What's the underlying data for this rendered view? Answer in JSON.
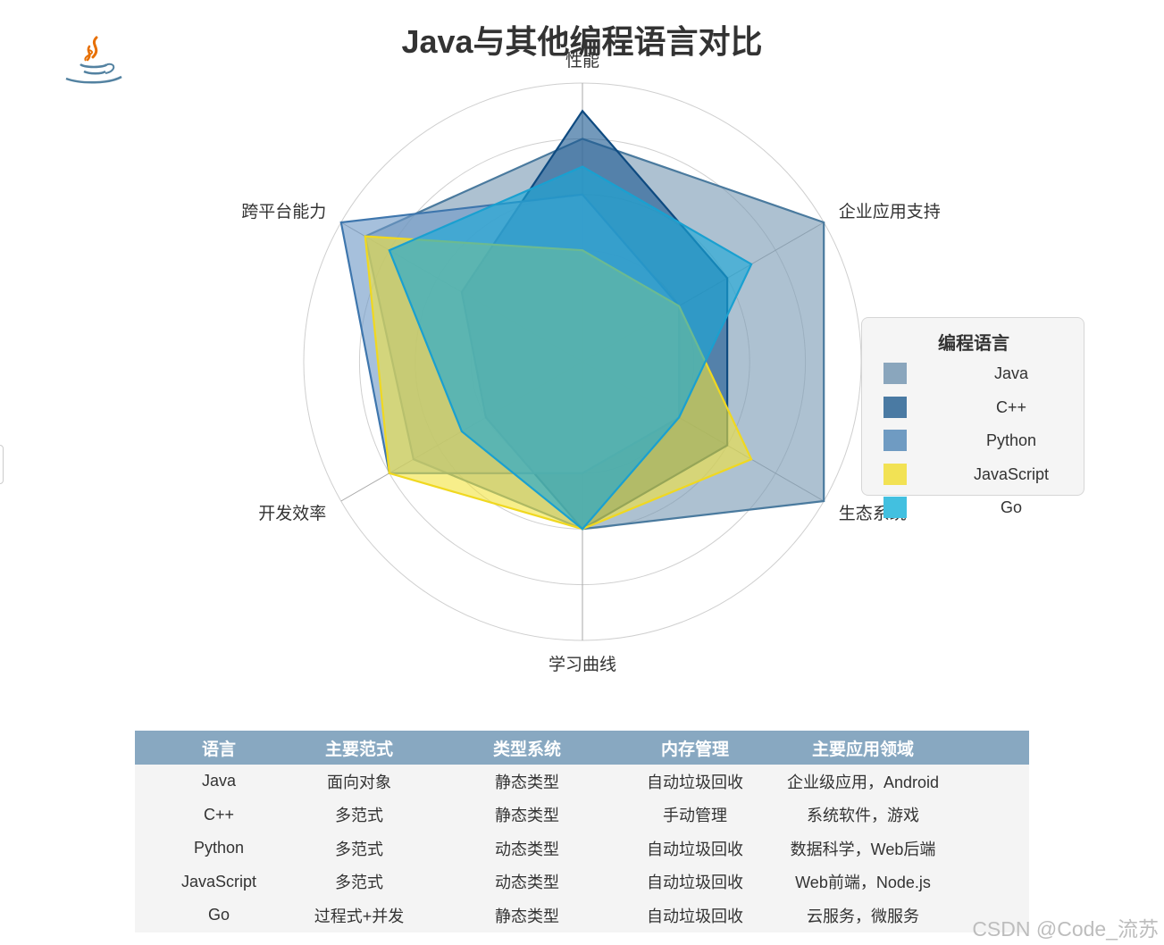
{
  "chart_data": {
    "type": "radar",
    "title": "Java与其他编程语言对比",
    "axes": [
      "性能",
      "企业应用支持",
      "生态系统",
      "学习曲线",
      "开发效率",
      "跨平台能力"
    ],
    "max": 10,
    "levels": 5,
    "legend": {
      "title": "编程语言",
      "position": "right",
      "items": [
        {
          "name": "Java",
          "color": "#8aa6bd"
        },
        {
          "name": "C++",
          "color": "#4a7aa3"
        },
        {
          "name": "Python",
          "color": "#6f9bc2"
        },
        {
          "name": "JavaScript",
          "color": "#f2e254"
        },
        {
          "name": "Go",
          "color": "#42c0e0"
        }
      ]
    },
    "series": [
      {
        "name": "Java",
        "values": [
          8,
          10,
          10,
          6,
          7,
          9
        ],
        "fill": "#7a9bb5",
        "stroke": "#4a7a9e"
      },
      {
        "name": "C++",
        "values": [
          9,
          6,
          6,
          6,
          4,
          5
        ],
        "fill": "#1d5b92",
        "stroke": "#0e4a80"
      },
      {
        "name": "Python",
        "values": [
          6,
          4,
          4,
          4,
          8,
          10
        ],
        "fill": "#6f9ac6",
        "stroke": "#3e76ad"
      },
      {
        "name": "JavaScript",
        "values": [
          4,
          4,
          7,
          6,
          8,
          9
        ],
        "fill": "#f2e23c",
        "stroke": "#f0d820"
      },
      {
        "name": "Go",
        "values": [
          7,
          7,
          4,
          6,
          5,
          8
        ],
        "fill": "#1aa8d6",
        "stroke": "#1aa0d0"
      }
    ]
  },
  "table": {
    "headers": [
      "语言",
      "主要范式",
      "类型系统",
      "内存管理",
      "主要应用领域"
    ],
    "rows": [
      [
        "Java",
        "面向对象",
        "静态类型",
        "自动垃圾回收",
        "企业级应用，Android"
      ],
      [
        "C++",
        "多范式",
        "静态类型",
        "手动管理",
        "系统软件，游戏"
      ],
      [
        "Python",
        "多范式",
        "动态类型",
        "自动垃圾回收",
        "数据科学，Web后端"
      ],
      [
        "JavaScript",
        "多范式",
        "动态类型",
        "自动垃圾回收",
        "Web前端，Node.js"
      ],
      [
        "Go",
        "过程式+并发",
        "静态类型",
        "自动垃圾回收",
        "云服务，微服务"
      ]
    ]
  },
  "watermark": "CSDN @Code_流苏",
  "logo": {
    "icon": "java-coffee-cup-icon"
  }
}
